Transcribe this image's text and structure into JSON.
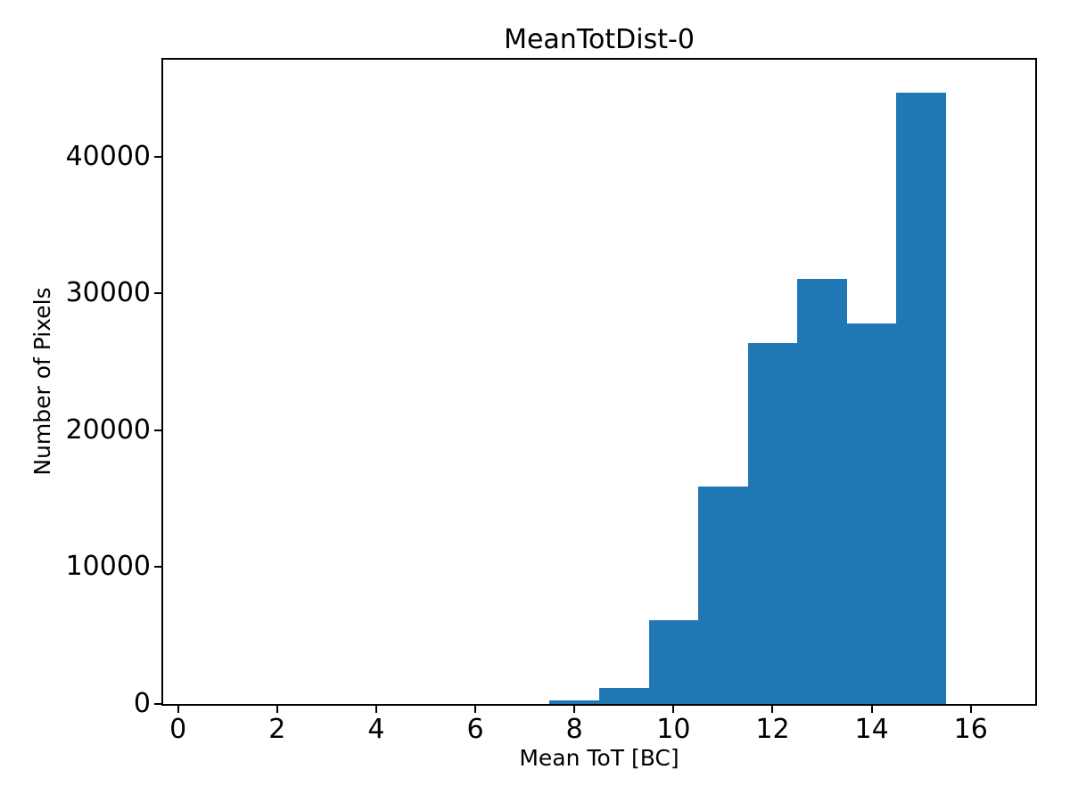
{
  "chart_data": {
    "type": "bar",
    "subtype": "histogram",
    "title": "MeanTotDist-0",
    "xlabel": "Mean ToT [BC]",
    "ylabel": "Number of Pixels",
    "bar_color": "#1f77b4",
    "spine_color": "#000000",
    "background_color": "#ffffff",
    "bin_width": 1,
    "bin_left_edges": [
      7.5,
      8.5,
      9.5,
      10.5,
      11.5,
      12.5,
      13.5,
      14.5
    ],
    "counts": [
      250,
      1200,
      6100,
      15900,
      26400,
      31100,
      27800,
      44700
    ],
    "xlim": [
      -0.3,
      17.3
    ],
    "ylim": [
      0,
      47100
    ],
    "xticks": [
      0,
      2,
      4,
      6,
      8,
      10,
      12,
      14,
      16
    ],
    "yticks": [
      0,
      10000,
      20000,
      30000,
      40000
    ],
    "grid": false,
    "legend_position": "none"
  }
}
